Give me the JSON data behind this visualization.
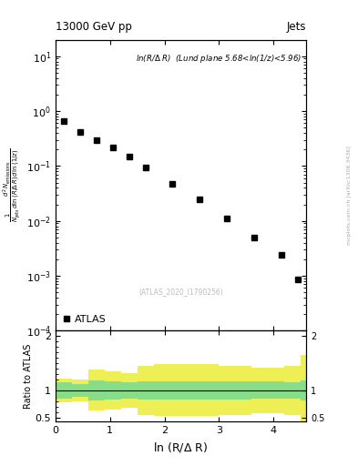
{
  "title_left": "13000 GeV pp",
  "title_right": "Jets",
  "annotation": "ln(R/Δ R)  (Lund plane 5.68<ln(1/z)<5.96)",
  "watermark": "(ATLAS_2020_I1790256)",
  "side_text": "mcplots.cern.ch [arXiv:1306.3436]",
  "xlabel": "ln (R/Δ R)",
  "ylabel_ratio": "Ratio to ATLAS",
  "atlas_x": [
    0.15,
    0.45,
    0.75,
    1.05,
    1.35,
    1.65,
    2.15,
    2.65,
    3.15,
    3.65,
    4.15,
    4.45
  ],
  "atlas_y": [
    0.65,
    0.42,
    0.295,
    0.22,
    0.148,
    0.095,
    0.048,
    0.025,
    0.011,
    0.005,
    0.0024,
    0.00085
  ],
  "bin_edges": [
    0.0,
    0.3,
    0.6,
    0.9,
    1.2,
    1.5,
    1.8,
    2.4,
    3.0,
    3.6,
    4.2,
    4.5,
    4.6
  ],
  "green_upper": [
    1.15,
    1.12,
    1.18,
    1.17,
    1.15,
    1.17,
    1.17,
    1.17,
    1.17,
    1.16,
    1.15,
    1.18
  ],
  "green_lower": [
    0.85,
    0.88,
    0.82,
    0.83,
    0.85,
    0.83,
    0.83,
    0.83,
    0.83,
    0.84,
    0.85,
    0.82
  ],
  "yellow_upper": [
    1.22,
    1.2,
    1.38,
    1.35,
    1.32,
    1.45,
    1.48,
    1.48,
    1.45,
    1.42,
    1.45,
    1.65
  ],
  "yellow_lower": [
    0.78,
    0.8,
    0.62,
    0.65,
    0.68,
    0.55,
    0.52,
    0.52,
    0.55,
    0.58,
    0.55,
    0.35
  ],
  "ylim_main": [
    0.0001,
    20
  ],
  "ylim_ratio": [
    0.42,
    2.1
  ],
  "xlim": [
    0,
    4.6
  ],
  "green_color": "#88dd88",
  "yellow_color": "#eeee55",
  "marker_color": "black",
  "marker_size": 4.5,
  "background_color": "white"
}
